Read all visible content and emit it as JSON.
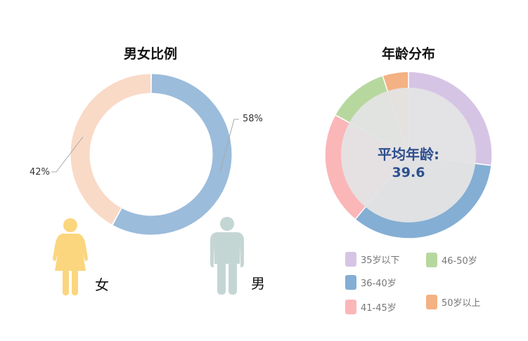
{
  "gender": {
    "title": "男女比例",
    "male_pct_label": "58%",
    "female_pct_label": "42%",
    "female_label": "女",
    "male_label": "男",
    "colors": {
      "male": "#9bbcdb",
      "female": "#f9dac7",
      "female_icon": "#fbd67f",
      "male_icon": "#c4d6d3"
    }
  },
  "age": {
    "title": "年龄分布",
    "center_label": "平均年龄:",
    "center_value": "39.6",
    "legend": [
      {
        "label": "35岁以下",
        "color": "#d6c4e5"
      },
      {
        "label": "46-50岁",
        "color": "#b6d89e"
      },
      {
        "label": "36-40岁",
        "color": "#84aed4"
      },
      {
        "label": "41-45岁",
        "color": "#fbb6b8"
      },
      {
        "label": "50岁以上",
        "color": "#f4b183"
      }
    ]
  },
  "chart_data": [
    {
      "type": "pie",
      "title": "男女比例",
      "categories": [
        "男",
        "女"
      ],
      "values": [
        58,
        42
      ],
      "labels": [
        "58%",
        "42%"
      ],
      "donut": true
    },
    {
      "type": "pie",
      "title": "年龄分布",
      "categories": [
        "35岁以下",
        "36-40岁",
        "41-45岁",
        "46-50岁",
        "50岁以上"
      ],
      "values": [
        27,
        34,
        22,
        12,
        5
      ],
      "donut": true,
      "annotation": "平均年龄: 39.6"
    }
  ]
}
